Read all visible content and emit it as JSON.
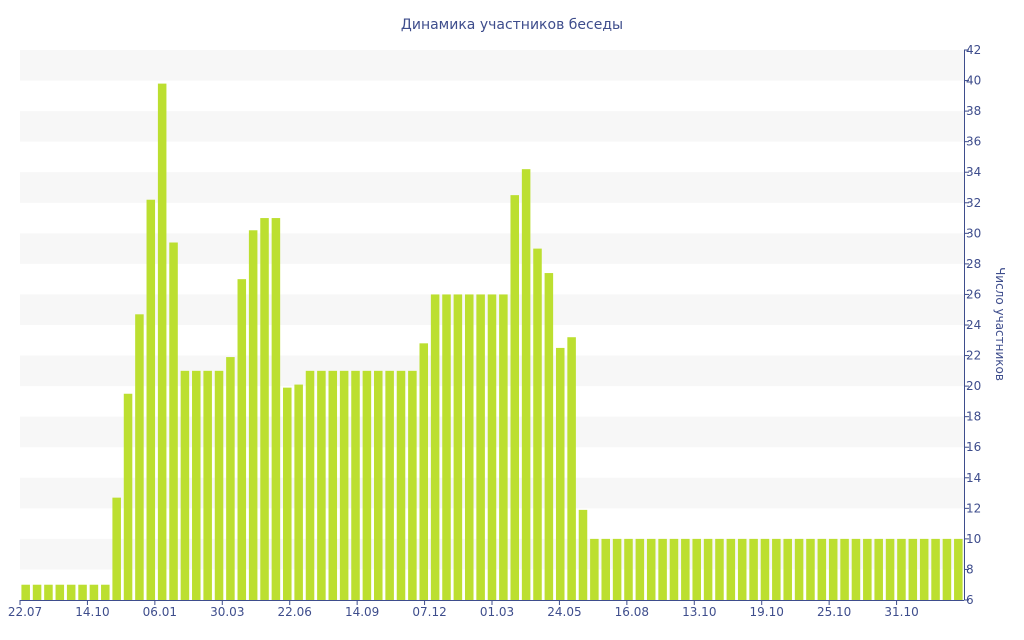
{
  "chart_data": {
    "type": "bar",
    "title": "Динамика участников беседы",
    "xlabel": "",
    "ylabel": "Число участников",
    "y_axis_side": "right",
    "ylim": [
      6,
      42
    ],
    "yticks": [
      6,
      8,
      10,
      12,
      14,
      16,
      18,
      20,
      22,
      24,
      26,
      28,
      30,
      32,
      34,
      36,
      38,
      40,
      42
    ],
    "x_tick_labels": [
      "22.07",
      "14.10",
      "06.01",
      "30.03",
      "22.06",
      "14.09",
      "07.12",
      "01.03",
      "24.05",
      "16.08",
      "13.10",
      "19.10",
      "25.10",
      "31.10"
    ],
    "bar_color": "#bcdf30",
    "grid": "alternating horizontal bands",
    "values": [
      7,
      7,
      7,
      7,
      7,
      7,
      7,
      7,
      12.7,
      19.5,
      24.7,
      32.2,
      39.8,
      29.4,
      21,
      21,
      21,
      21,
      21.9,
      27,
      30.2,
      31,
      31,
      19.9,
      20.1,
      21,
      21,
      21,
      21,
      21,
      21,
      21,
      21,
      21,
      21,
      22.8,
      26,
      26,
      26,
      26,
      26,
      26,
      26,
      32.5,
      34.2,
      29,
      27.4,
      22.5,
      23.2,
      11.9,
      10,
      10,
      10,
      10,
      10,
      10,
      10,
      10,
      10,
      10,
      10,
      10,
      10,
      10,
      10,
      10,
      10,
      10,
      10,
      10,
      10,
      10,
      10,
      10,
      10,
      10,
      10,
      10,
      10,
      10,
      10,
      10,
      10
    ]
  }
}
